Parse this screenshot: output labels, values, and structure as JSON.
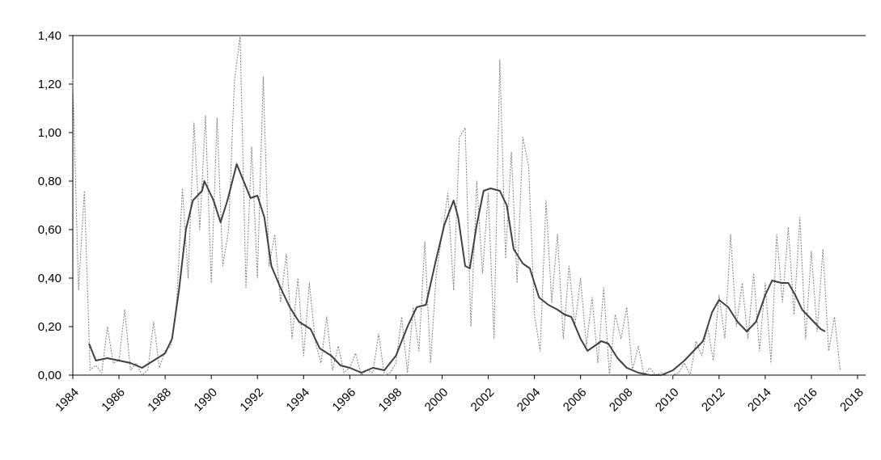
{
  "chart_data": {
    "type": "line",
    "xlim": [
      1984,
      2018
    ],
    "xticks": [
      1984,
      1986,
      1988,
      1990,
      1992,
      1994,
      1996,
      1998,
      2000,
      2002,
      2004,
      2006,
      2008,
      2010,
      2012,
      2014,
      2016,
      2018
    ],
    "ylim": [
      0,
      1.4
    ],
    "yticks": [
      {
        "value": 0,
        "label": "0,00"
      },
      {
        "value": 0.2,
        "label": "0,20"
      },
      {
        "value": 0.4,
        "label": "0,40"
      },
      {
        "value": 0.6,
        "label": "0,60"
      },
      {
        "value": 0.8,
        "label": "0,80"
      },
      {
        "value": 1.0,
        "label": "1,00"
      },
      {
        "value": 1.2,
        "label": "1,20"
      },
      {
        "value": 1.4,
        "label": "1,40"
      }
    ],
    "series": [
      {
        "color": "#808080",
        "style": "dotted",
        "x": [
          1984,
          1984.25,
          1984.5,
          1984.75,
          1985,
          1985.25,
          1985.5,
          1985.75,
          1986,
          1986.25,
          1986.5,
          1986.75,
          1987,
          1987.25,
          1987.5,
          1987.75,
          1988,
          1988.25,
          1988.5,
          1988.75,
          1989,
          1989.25,
          1989.5,
          1989.75,
          1990,
          1990.25,
          1990.5,
          1990.75,
          1991,
          1991.25,
          1991.5,
          1991.75,
          1992,
          1992.25,
          1992.5,
          1992.75,
          1993,
          1993.25,
          1993.5,
          1993.75,
          1994,
          1994.25,
          1994.5,
          1994.75,
          1995,
          1995.25,
          1995.5,
          1995.75,
          1996,
          1996.25,
          1996.5,
          1996.75,
          1997,
          1997.25,
          1997.5,
          1997.75,
          1998,
          1998.25,
          1998.5,
          1998.75,
          1999,
          1999.25,
          1999.5,
          1999.75,
          2000,
          2000.25,
          2000.5,
          2000.75,
          2001,
          2001.25,
          2001.5,
          2001.75,
          2002,
          2002.25,
          2002.5,
          2002.75,
          2003,
          2003.25,
          2003.5,
          2003.75,
          2004,
          2004.25,
          2004.5,
          2004.75,
          2005,
          2005.25,
          2005.5,
          2005.75,
          2006,
          2006.25,
          2006.5,
          2006.75,
          2007,
          2007.25,
          2007.5,
          2007.75,
          2008,
          2008.25,
          2008.5,
          2008.75,
          2009,
          2009.25,
          2009.5,
          2009.75,
          2010,
          2010.25,
          2010.5,
          2010.75,
          2011,
          2011.25,
          2011.5,
          2011.75,
          2012,
          2012.25,
          2012.5,
          2012.75,
          2013,
          2013.25,
          2013.5,
          2013.75,
          2014,
          2014.25,
          2014.5,
          2014.75,
          2015,
          2015.25,
          2015.5,
          2015.75,
          2016,
          2016.25,
          2016.5,
          2016.75,
          2017,
          2017.25
        ],
        "values": [
          1.22,
          0.35,
          0.76,
          0.02,
          0.04,
          0.01,
          0.2,
          0.05,
          0.06,
          0.27,
          0.02,
          0.05,
          0.0,
          0.02,
          0.22,
          0.03,
          0.1,
          0.12,
          0.3,
          0.77,
          0.4,
          1.04,
          0.6,
          1.07,
          0.38,
          1.06,
          0.45,
          0.6,
          1.21,
          1.4,
          0.36,
          0.94,
          0.4,
          1.23,
          0.45,
          0.58,
          0.3,
          0.5,
          0.15,
          0.4,
          0.08,
          0.38,
          0.14,
          0.05,
          0.24,
          0.02,
          0.12,
          0.01,
          0.03,
          0.09,
          0.0,
          0.02,
          0.01,
          0.17,
          0.0,
          0.01,
          0.05,
          0.24,
          0.01,
          0.28,
          0.1,
          0.55,
          0.05,
          0.42,
          0.58,
          0.75,
          0.35,
          0.98,
          1.02,
          0.2,
          0.8,
          0.42,
          0.75,
          0.15,
          1.3,
          0.48,
          0.92,
          0.38,
          0.98,
          0.86,
          0.25,
          0.1,
          0.72,
          0.3,
          0.58,
          0.15,
          0.45,
          0.2,
          0.4,
          0.12,
          0.32,
          0.05,
          0.36,
          0.0,
          0.25,
          0.15,
          0.28,
          0.02,
          0.12,
          0.0,
          0.03,
          0.0,
          0.01,
          0.0,
          0.0,
          0.01,
          0.05,
          0.0,
          0.14,
          0.08,
          0.2,
          0.06,
          0.33,
          0.15,
          0.58,
          0.2,
          0.38,
          0.15,
          0.42,
          0.1,
          0.38,
          0.05,
          0.58,
          0.3,
          0.61,
          0.25,
          0.65,
          0.15,
          0.51,
          0.18,
          0.52,
          0.1,
          0.24,
          0.02
        ]
      },
      {
        "color": "#404040",
        "style": "solid",
        "x": [
          1984.7,
          1985,
          1985.5,
          1986,
          1986.5,
          1987,
          1987.5,
          1988,
          1988.3,
          1988.6,
          1988.9,
          1989.2,
          1989.6,
          1989.7,
          1990.1,
          1990.4,
          1990.7,
          1991.1,
          1991.4,
          1991.7,
          1992,
          1992.3,
          1992.6,
          1993,
          1993.4,
          1993.8,
          1994.3,
          1994.7,
          1995.2,
          1995.6,
          1996,
          1996.5,
          1997,
          1997.5,
          1998,
          1998.5,
          1998.9,
          1999.3,
          1999.7,
          2000.1,
          2000.5,
          2000.7,
          2001,
          2001.2,
          2001.5,
          2001.8,
          2002.1,
          2002.5,
          2002.8,
          2003.1,
          2003.5,
          2003.8,
          2004.2,
          2004.6,
          2005,
          2005.3,
          2005.6,
          2006,
          2006.3,
          2006.6,
          2006.9,
          2007.2,
          2007.6,
          2008,
          2008.5,
          2009,
          2009.5,
          2010,
          2010.5,
          2011,
          2011.3,
          2011.7,
          2012,
          2012.4,
          2012.8,
          2013.2,
          2013.6,
          2014,
          2014.3,
          2014.7,
          2015,
          2015.3,
          2015.6,
          2016,
          2016.4,
          2016.6
        ],
        "values": [
          0.13,
          0.06,
          0.07,
          0.06,
          0.05,
          0.03,
          0.06,
          0.09,
          0.15,
          0.35,
          0.6,
          0.72,
          0.76,
          0.8,
          0.72,
          0.63,
          0.72,
          0.87,
          0.8,
          0.73,
          0.74,
          0.65,
          0.45,
          0.36,
          0.28,
          0.22,
          0.19,
          0.11,
          0.08,
          0.04,
          0.03,
          0.01,
          0.03,
          0.02,
          0.08,
          0.2,
          0.28,
          0.29,
          0.46,
          0.62,
          0.72,
          0.65,
          0.45,
          0.44,
          0.62,
          0.76,
          0.77,
          0.76,
          0.7,
          0.52,
          0.46,
          0.44,
          0.32,
          0.29,
          0.27,
          0.25,
          0.24,
          0.15,
          0.1,
          0.12,
          0.14,
          0.13,
          0.07,
          0.03,
          0.01,
          0.0,
          0.0,
          0.02,
          0.06,
          0.11,
          0.14,
          0.26,
          0.31,
          0.28,
          0.22,
          0.18,
          0.22,
          0.33,
          0.39,
          0.38,
          0.38,
          0.33,
          0.27,
          0.23,
          0.19,
          0.18
        ]
      }
    ]
  }
}
